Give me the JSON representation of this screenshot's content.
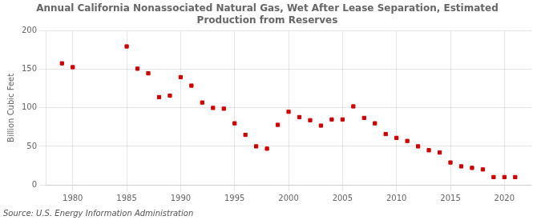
{
  "chart_data": {
    "type": "scatter",
    "title": "Annual California Nonassociated Natural Gas, Wet After Lease Separation, Estimated\nProduction from Reserves",
    "ylabel": "Billion Cubic Feet",
    "source": "Source: U.S. Energy Information Administration",
    "x": [
      1979,
      1980,
      1985,
      1986,
      1987,
      1988,
      1989,
      1990,
      1991,
      1992,
      1993,
      1994,
      1995,
      1996,
      1997,
      1998,
      1999,
      2000,
      2001,
      2002,
      2003,
      2004,
      2005,
      2006,
      2007,
      2008,
      2009,
      2010,
      2011,
      2012,
      2013,
      2014,
      2015,
      2016,
      2017,
      2018,
      2019,
      2020,
      2021
    ],
    "values": [
      158,
      153,
      180,
      151,
      145,
      114,
      116,
      140,
      129,
      107,
      100,
      99,
      80,
      65,
      50,
      47,
      78,
      95,
      88,
      84,
      77,
      85,
      85,
      102,
      87,
      80,
      66,
      61,
      57,
      50,
      45,
      42,
      29,
      24,
      22,
      20,
      10,
      10,
      10
    ],
    "color": "#cc0000",
    "marker": "square",
    "xlim": [
      1977.5,
      2022.5
    ],
    "xticks": [
      1980,
      1985,
      1990,
      1995,
      2000,
      2005,
      2010,
      2015,
      2020
    ],
    "ylim": [
      0,
      200
    ],
    "yticks": [
      0,
      50,
      100,
      150,
      200
    ],
    "grid": true
  }
}
